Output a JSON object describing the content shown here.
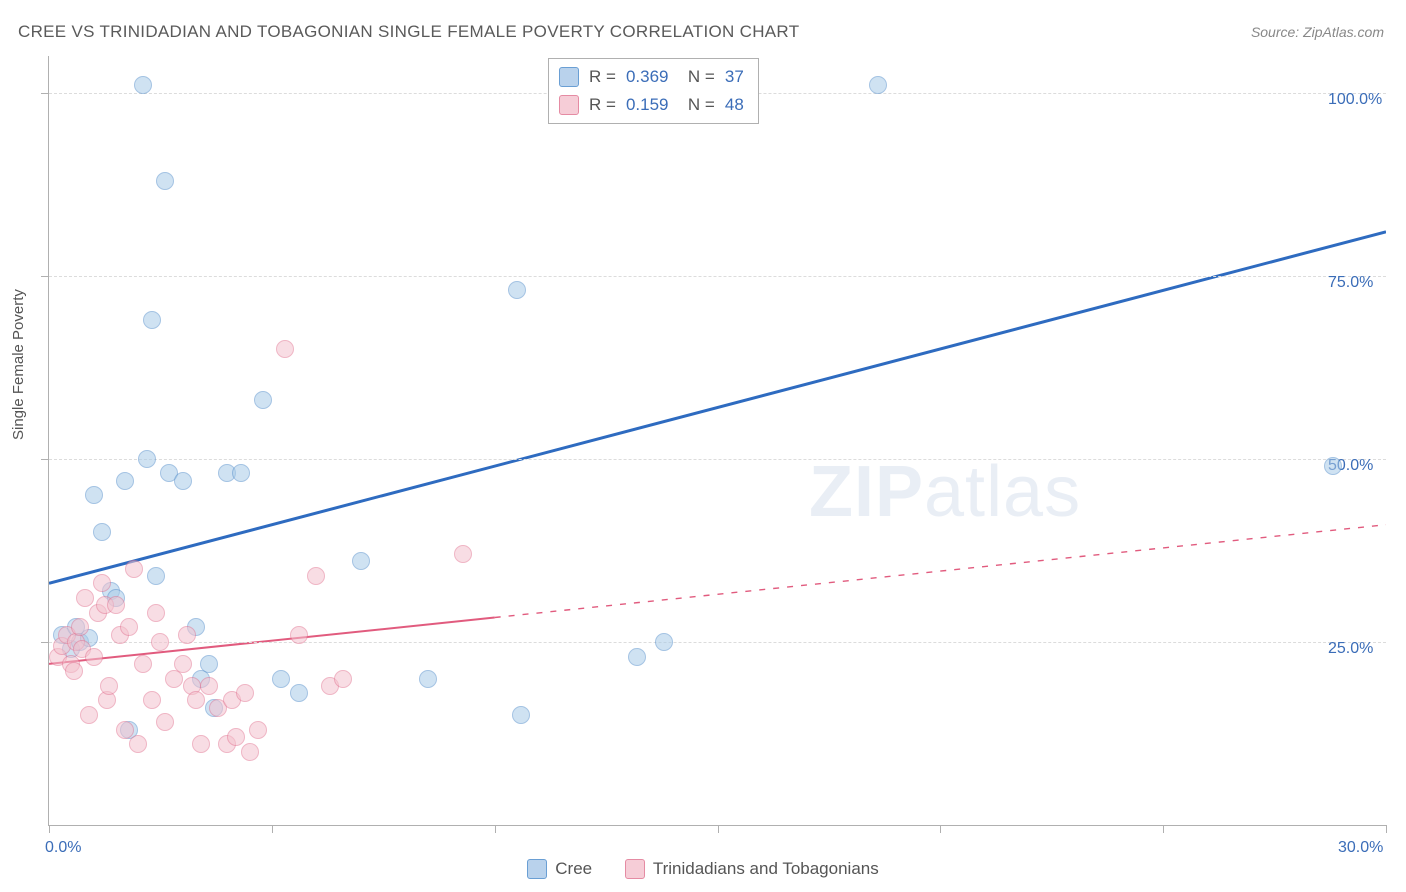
{
  "title": "CREE VS TRINIDADIAN AND TOBAGONIAN SINGLE FEMALE POVERTY CORRELATION CHART",
  "source": "Source: ZipAtlas.com",
  "watermark": {
    "bold": "ZIP",
    "light": "atlas"
  },
  "yaxis_title": "Single Female Poverty",
  "chart": {
    "type": "scatter",
    "xlim": [
      0,
      30
    ],
    "ylim": [
      0,
      105
    ],
    "y_gridlines": [
      25,
      50,
      75,
      100
    ],
    "y_tick_labels": [
      "25.0%",
      "50.0%",
      "75.0%",
      "100.0%"
    ],
    "x_ticks": [
      0,
      5,
      10,
      15,
      20,
      25,
      30
    ],
    "x_tick_labels": {
      "0": "0.0%",
      "30": "30.0%"
    },
    "background_color": "#ffffff",
    "grid_color": "#dcdcdc",
    "axis_color": "#b0b0b0",
    "tick_label_color": "#3b6db8",
    "marker_radius": 9,
    "marker_opacity": 0.55,
    "marker_stroke_width": 1.2,
    "series": [
      {
        "name": "Cree",
        "fill": "#a9cbe8",
        "stroke": "#5b93cd",
        "swatch_fill": "#b9d2ec",
        "swatch_stroke": "#6a9fd4",
        "R": "0.369",
        "N": "37",
        "trend": {
          "x1": 0,
          "y1": 33,
          "x2": 30,
          "y2": 81,
          "solid_until_x": 30,
          "color": "#2e6bc0",
          "width": 3
        },
        "points": [
          [
            0.3,
            26
          ],
          [
            0.5,
            24
          ],
          [
            0.6,
            27
          ],
          [
            0.7,
            25
          ],
          [
            0.9,
            25.5
          ],
          [
            1.0,
            45
          ],
          [
            1.2,
            40
          ],
          [
            1.4,
            32
          ],
          [
            1.5,
            31
          ],
          [
            1.7,
            47
          ],
          [
            1.8,
            13
          ],
          [
            2.1,
            101
          ],
          [
            2.2,
            50
          ],
          [
            2.3,
            69
          ],
          [
            2.4,
            34
          ],
          [
            2.6,
            88
          ],
          [
            2.7,
            48
          ],
          [
            3.0,
            47
          ],
          [
            3.3,
            27
          ],
          [
            3.4,
            20
          ],
          [
            3.6,
            22
          ],
          [
            3.7,
            16
          ],
          [
            4.0,
            48
          ],
          [
            4.3,
            48
          ],
          [
            4.8,
            58
          ],
          [
            5.2,
            20
          ],
          [
            5.6,
            18
          ],
          [
            7.0,
            36
          ],
          [
            8.5,
            20
          ],
          [
            10.5,
            73
          ],
          [
            10.6,
            15
          ],
          [
            13.2,
            23
          ],
          [
            13.8,
            25
          ],
          [
            18.6,
            101
          ],
          [
            28.8,
            49
          ]
        ]
      },
      {
        "name": "Trinidadians and Tobagonians",
        "fill": "#f4c2ce",
        "stroke": "#e37a96",
        "swatch_fill": "#f6cdd7",
        "swatch_stroke": "#e58ba3",
        "R": "0.159",
        "N": "48",
        "trend": {
          "x1": 0,
          "y1": 22,
          "x2": 30,
          "y2": 41,
          "solid_until_x": 10,
          "color": "#e15b7e",
          "width": 2
        },
        "points": [
          [
            0.2,
            23
          ],
          [
            0.3,
            24.5
          ],
          [
            0.4,
            26
          ],
          [
            0.5,
            22
          ],
          [
            0.55,
            21
          ],
          [
            0.6,
            25
          ],
          [
            0.7,
            27
          ],
          [
            0.75,
            24
          ],
          [
            0.8,
            31
          ],
          [
            0.9,
            15
          ],
          [
            1.0,
            23
          ],
          [
            1.1,
            29
          ],
          [
            1.2,
            33
          ],
          [
            1.25,
            30
          ],
          [
            1.3,
            17
          ],
          [
            1.35,
            19
          ],
          [
            1.5,
            30
          ],
          [
            1.6,
            26
          ],
          [
            1.7,
            13
          ],
          [
            1.8,
            27
          ],
          [
            1.9,
            35
          ],
          [
            2.0,
            11
          ],
          [
            2.1,
            22
          ],
          [
            2.3,
            17
          ],
          [
            2.4,
            29
          ],
          [
            2.5,
            25
          ],
          [
            2.6,
            14
          ],
          [
            2.8,
            20
          ],
          [
            3.0,
            22
          ],
          [
            3.1,
            26
          ],
          [
            3.2,
            19
          ],
          [
            3.3,
            17
          ],
          [
            3.4,
            11
          ],
          [
            3.6,
            19
          ],
          [
            3.8,
            16
          ],
          [
            4.0,
            11
          ],
          [
            4.1,
            17
          ],
          [
            4.2,
            12
          ],
          [
            4.4,
            18
          ],
          [
            4.5,
            10
          ],
          [
            4.7,
            13
          ],
          [
            5.3,
            65
          ],
          [
            5.6,
            26
          ],
          [
            6.0,
            34
          ],
          [
            6.3,
            19
          ],
          [
            6.6,
            20
          ],
          [
            9.3,
            37
          ]
        ]
      }
    ]
  },
  "legend_bottom": [
    {
      "label": "Cree",
      "fill": "#b9d2ec",
      "stroke": "#6a9fd4"
    },
    {
      "label": "Trinidadians and Tobagonians",
      "fill": "#f6cdd7",
      "stroke": "#e58ba3"
    }
  ]
}
